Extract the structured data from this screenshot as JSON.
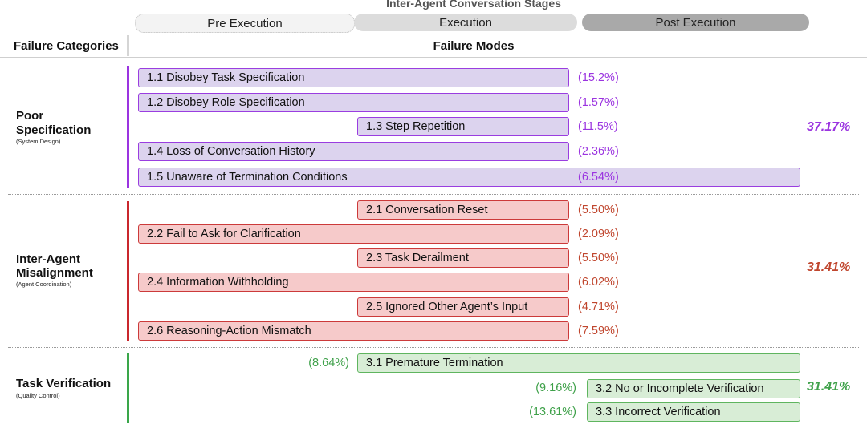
{
  "header": {
    "title": "Inter-Agent Conversation Stages",
    "stages": [
      "Pre Execution",
      "Execution",
      "Post Execution"
    ],
    "col_categories": "Failure Categories",
    "col_modes": "Failure Modes"
  },
  "colors": {
    "cat1": "#9b34e0",
    "cat2": "#c0462e",
    "cat3": "#3fa14a"
  },
  "categories": [
    {
      "name_lines": [
        "Poor",
        "Specification"
      ],
      "subtitle": "(System Design)",
      "total": "37.17%",
      "modes": [
        {
          "label": "1.1 Disobey Task Specification",
          "pct": "(15.2%)"
        },
        {
          "label": "1.2 Disobey Role Specification",
          "pct": "(1.57%)"
        },
        {
          "label": "1.3 Step Repetition",
          "pct": "(11.5%)"
        },
        {
          "label": "1.4 Loss of Conversation History",
          "pct": "(2.36%)"
        },
        {
          "label": "1.5 Unaware of Termination Conditions",
          "pct": "(6.54%)"
        }
      ]
    },
    {
      "name_lines": [
        "Inter-Agent",
        "Misalignment"
      ],
      "subtitle": "(Agent Coordination)",
      "total": "31.41%",
      "modes": [
        {
          "label": "2.1 Conversation Reset",
          "pct": "(5.50%)"
        },
        {
          "label": "2.2 Fail to Ask for Clarification",
          "pct": "(2.09%)"
        },
        {
          "label": "2.3 Task Derailment",
          "pct": "(5.50%)"
        },
        {
          "label": "2.4 Information Withholding",
          "pct": "(6.02%)"
        },
        {
          "label": "2.5 Ignored Other Agent’s Input",
          "pct": "(4.71%)"
        },
        {
          "label": "2.6 Reasoning-Action Mismatch",
          "pct": "(7.59%)"
        }
      ]
    },
    {
      "name_lines": [
        "Task Verification"
      ],
      "subtitle": "(Quality Control)",
      "total": "31.41%",
      "modes": [
        {
          "label": "3.1  Premature Termination",
          "pct": "(8.64%)"
        },
        {
          "label": "3.2 No or Incomplete Verification",
          "pct": "(9.16%)"
        },
        {
          "label": "3.3 Incorrect Verification",
          "pct": "(13.61%)"
        }
      ]
    }
  ]
}
